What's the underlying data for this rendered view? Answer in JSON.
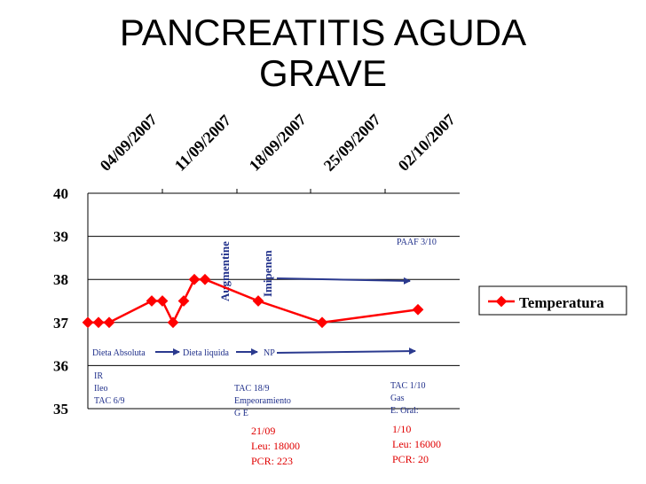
{
  "title": "PANCREATITIS AGUDA GRAVE",
  "chart_data": {
    "type": "line",
    "title": "PANCREATITIS AGUDA GRAVE",
    "x_ticks": [
      "04/09/2007",
      "11/09/2007",
      "18/09/2007",
      "25/09/2007",
      "02/10/2007"
    ],
    "y_ticks": [
      "40",
      "39",
      "38",
      "37",
      "36",
      "35"
    ],
    "ylim": [
      35,
      40
    ],
    "grid": true,
    "legend_position": "right",
    "series": [
      {
        "name": "Temperatura",
        "color": "#ff0000",
        "points": [
          {
            "x": "2007-08-31",
            "y": 37.0
          },
          {
            "x": "2007-09-01",
            "y": 37.0
          },
          {
            "x": "2007-09-02",
            "y": 37.0
          },
          {
            "x": "2007-09-06",
            "y": 37.5
          },
          {
            "x": "2007-09-07",
            "y": 37.5
          },
          {
            "x": "2007-09-08",
            "y": 37.0
          },
          {
            "x": "2007-09-09",
            "y": 37.5
          },
          {
            "x": "2007-09-10",
            "y": 38.0
          },
          {
            "x": "2007-09-11",
            "y": 38.0
          },
          {
            "x": "2007-09-16",
            "y": 37.5
          },
          {
            "x": "2007-09-22",
            "y": 37.0
          },
          {
            "x": "2007-10-01",
            "y": 37.3
          }
        ]
      }
    ],
    "annotations": {
      "rotated": [
        "Augmentine",
        "Imipenen"
      ],
      "blue": {
        "diet_1": "Dieta Absoluta",
        "diet_2": "Dieta liquida",
        "diet_3": "NP",
        "paaf": "PAAF 3/10",
        "ir_lines": [
          "IR",
          "Ileo",
          "TAC 6/9"
        ],
        "tac18_lines": [
          "TAC 18/9",
          "Empeoramiento",
          "G E"
        ],
        "tac1_lines": [
          "TAC 1/10",
          "Gas",
          "E. Oral:"
        ]
      },
      "red": {
        "lab_21_lines": [
          "21/09",
          "Leu: 18000",
          "PCR: 223"
        ],
        "lab_1_lines": [
          "1/10",
          "Leu: 16000",
          "PCR: 20"
        ]
      }
    }
  },
  "colors": {
    "line": "#ff0000",
    "annotation": "#1f2f8a",
    "arrow": "#2b3a8f",
    "grid": "#000000"
  }
}
